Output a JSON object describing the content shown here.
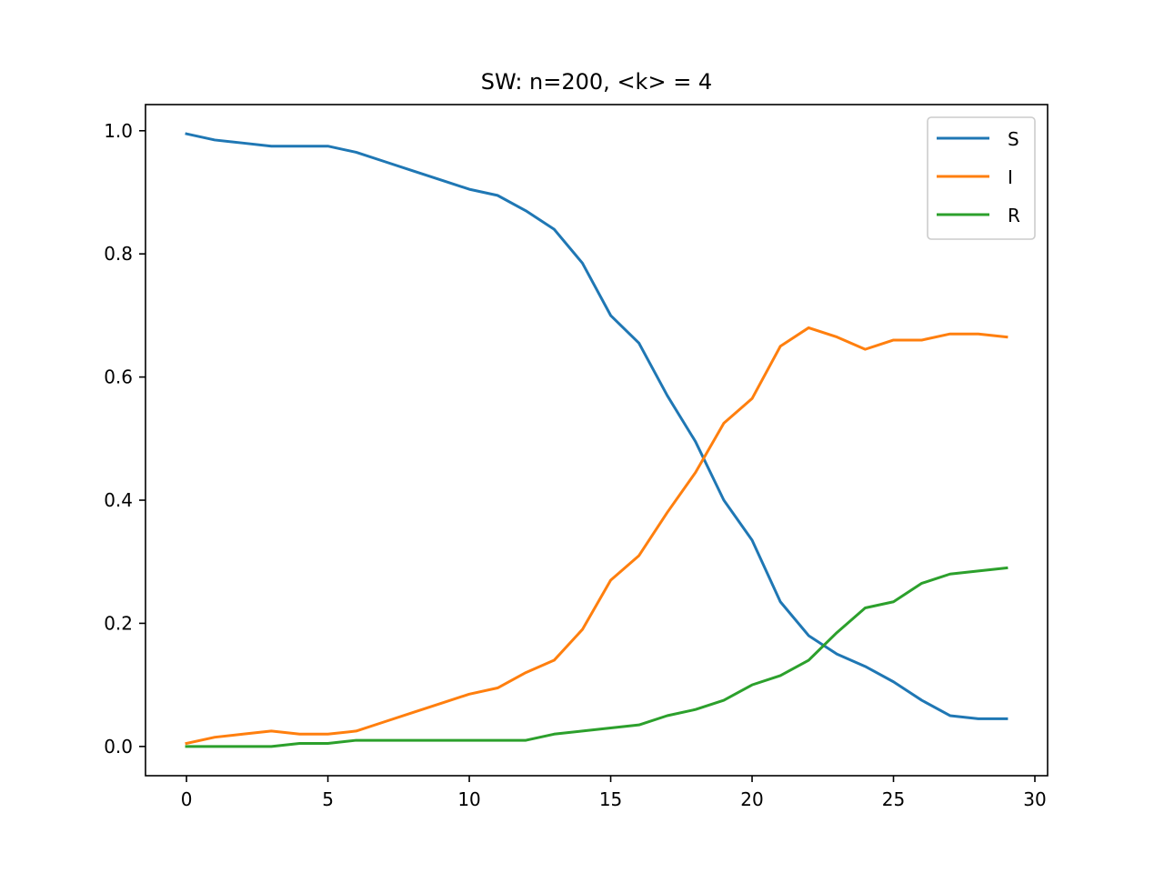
{
  "chart_data": {
    "type": "line",
    "title": "SW: n=200, <k> = 4",
    "xlabel": "",
    "ylabel": "",
    "xlim": [
      -1.45,
      30.45
    ],
    "ylim": [
      -0.0475,
      1.0425
    ],
    "xticks": [
      0,
      5,
      10,
      15,
      20,
      25,
      30
    ],
    "xtick_labels": [
      "0",
      "5",
      "10",
      "15",
      "20",
      "25",
      "30"
    ],
    "yticks": [
      0.0,
      0.2,
      0.4,
      0.6,
      0.8,
      1.0
    ],
    "ytick_labels": [
      "0.0",
      "0.2",
      "0.4",
      "0.6",
      "0.8",
      "1.0"
    ],
    "grid": false,
    "legend_position": "top-right",
    "x": [
      0,
      1,
      2,
      3,
      4,
      5,
      6,
      7,
      8,
      9,
      10,
      11,
      12,
      13,
      14,
      15,
      16,
      17,
      18,
      19,
      20,
      21,
      22,
      23,
      24,
      25,
      26,
      27,
      28,
      29
    ],
    "series": [
      {
        "name": "S",
        "color": "#1f77b4",
        "values": [
          0.995,
          0.985,
          0.98,
          0.975,
          0.975,
          0.975,
          0.965,
          0.95,
          0.935,
          0.92,
          0.905,
          0.895,
          0.87,
          0.84,
          0.785,
          0.7,
          0.655,
          0.57,
          0.495,
          0.4,
          0.335,
          0.235,
          0.18,
          0.15,
          0.13,
          0.105,
          0.075,
          0.05,
          0.045,
          0.045
        ]
      },
      {
        "name": "I",
        "color": "#ff7f0e",
        "values": [
          0.005,
          0.015,
          0.02,
          0.025,
          0.02,
          0.02,
          0.025,
          0.04,
          0.055,
          0.07,
          0.085,
          0.095,
          0.12,
          0.14,
          0.19,
          0.27,
          0.31,
          0.38,
          0.445,
          0.525,
          0.565,
          0.65,
          0.68,
          0.665,
          0.645,
          0.66,
          0.66,
          0.67,
          0.67,
          0.665
        ]
      },
      {
        "name": "R",
        "color": "#2ca02c",
        "values": [
          0.0,
          0.0,
          0.0,
          0.0,
          0.005,
          0.005,
          0.01,
          0.01,
          0.01,
          0.01,
          0.01,
          0.01,
          0.01,
          0.02,
          0.025,
          0.03,
          0.035,
          0.05,
          0.06,
          0.075,
          0.1,
          0.115,
          0.14,
          0.185,
          0.225,
          0.235,
          0.265,
          0.28,
          0.285,
          0.29
        ]
      }
    ]
  }
}
